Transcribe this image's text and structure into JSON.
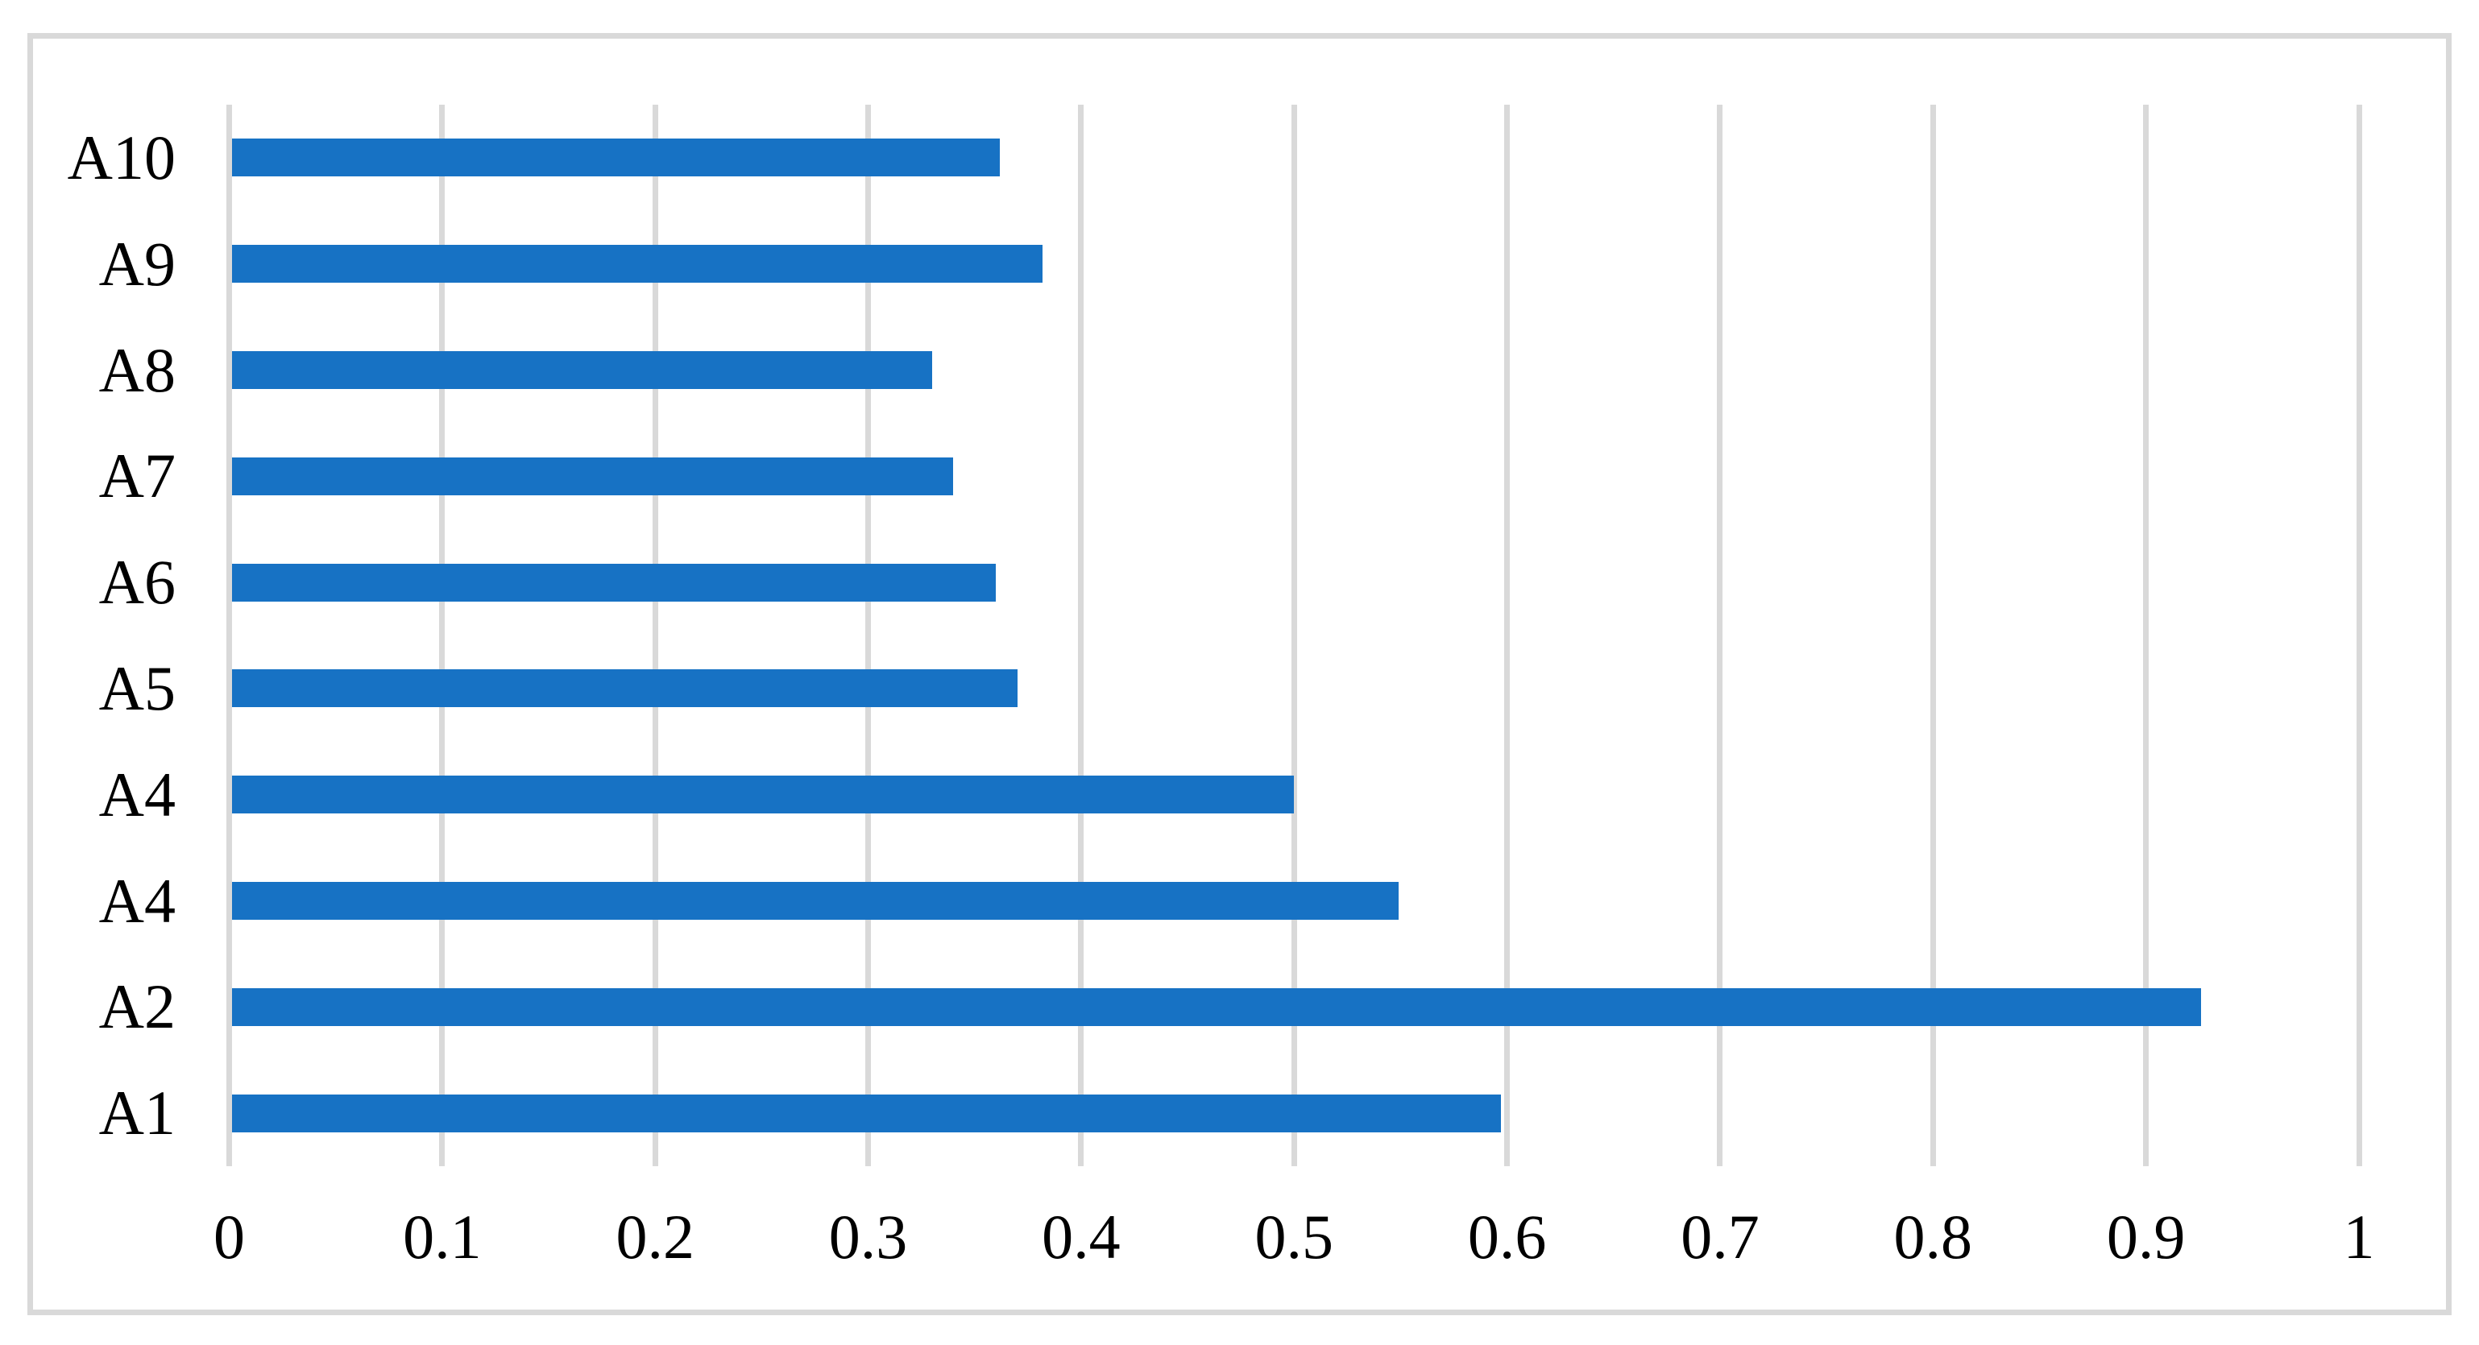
{
  "figure": {
    "background_color": "#FFFFFF",
    "border_color": "#D9D9D9",
    "title": ""
  },
  "chart_data": {
    "type": "bar",
    "orientation": "horizontal",
    "title": "",
    "xlabel": "",
    "ylabel": "",
    "legend_position": "none",
    "grid": "vertical-major-gridlines",
    "xlim": [
      0,
      1
    ],
    "x_tick_interval": 0.1,
    "x_ticks": [
      {
        "value": 0.0,
        "label": "0"
      },
      {
        "value": 0.1,
        "label": "0.1"
      },
      {
        "value": 0.2,
        "label": "0.2"
      },
      {
        "value": 0.3,
        "label": "0.3"
      },
      {
        "value": 0.4,
        "label": "0.4"
      },
      {
        "value": 0.5,
        "label": "0.5"
      },
      {
        "value": 0.6,
        "label": "0.6"
      },
      {
        "value": 0.7,
        "label": "0.7"
      },
      {
        "value": 0.8,
        "label": "0.8"
      },
      {
        "value": 0.9,
        "label": "0.9"
      },
      {
        "value": 1.0,
        "label": "1"
      }
    ],
    "categories_top_to_bottom": [
      "A10",
      "A9",
      "A8",
      "A7",
      "A6",
      "A5",
      "A4",
      "A4",
      "A2",
      "A1"
    ],
    "values_top_to_bottom": [
      0.362,
      0.382,
      0.33,
      0.34,
      0.36,
      0.37,
      0.5,
      0.549,
      0.926,
      0.597
    ],
    "colors": {
      "bar": "#1772C4",
      "gridline": "#D9D9D9",
      "axis_text": "#000000"
    }
  }
}
